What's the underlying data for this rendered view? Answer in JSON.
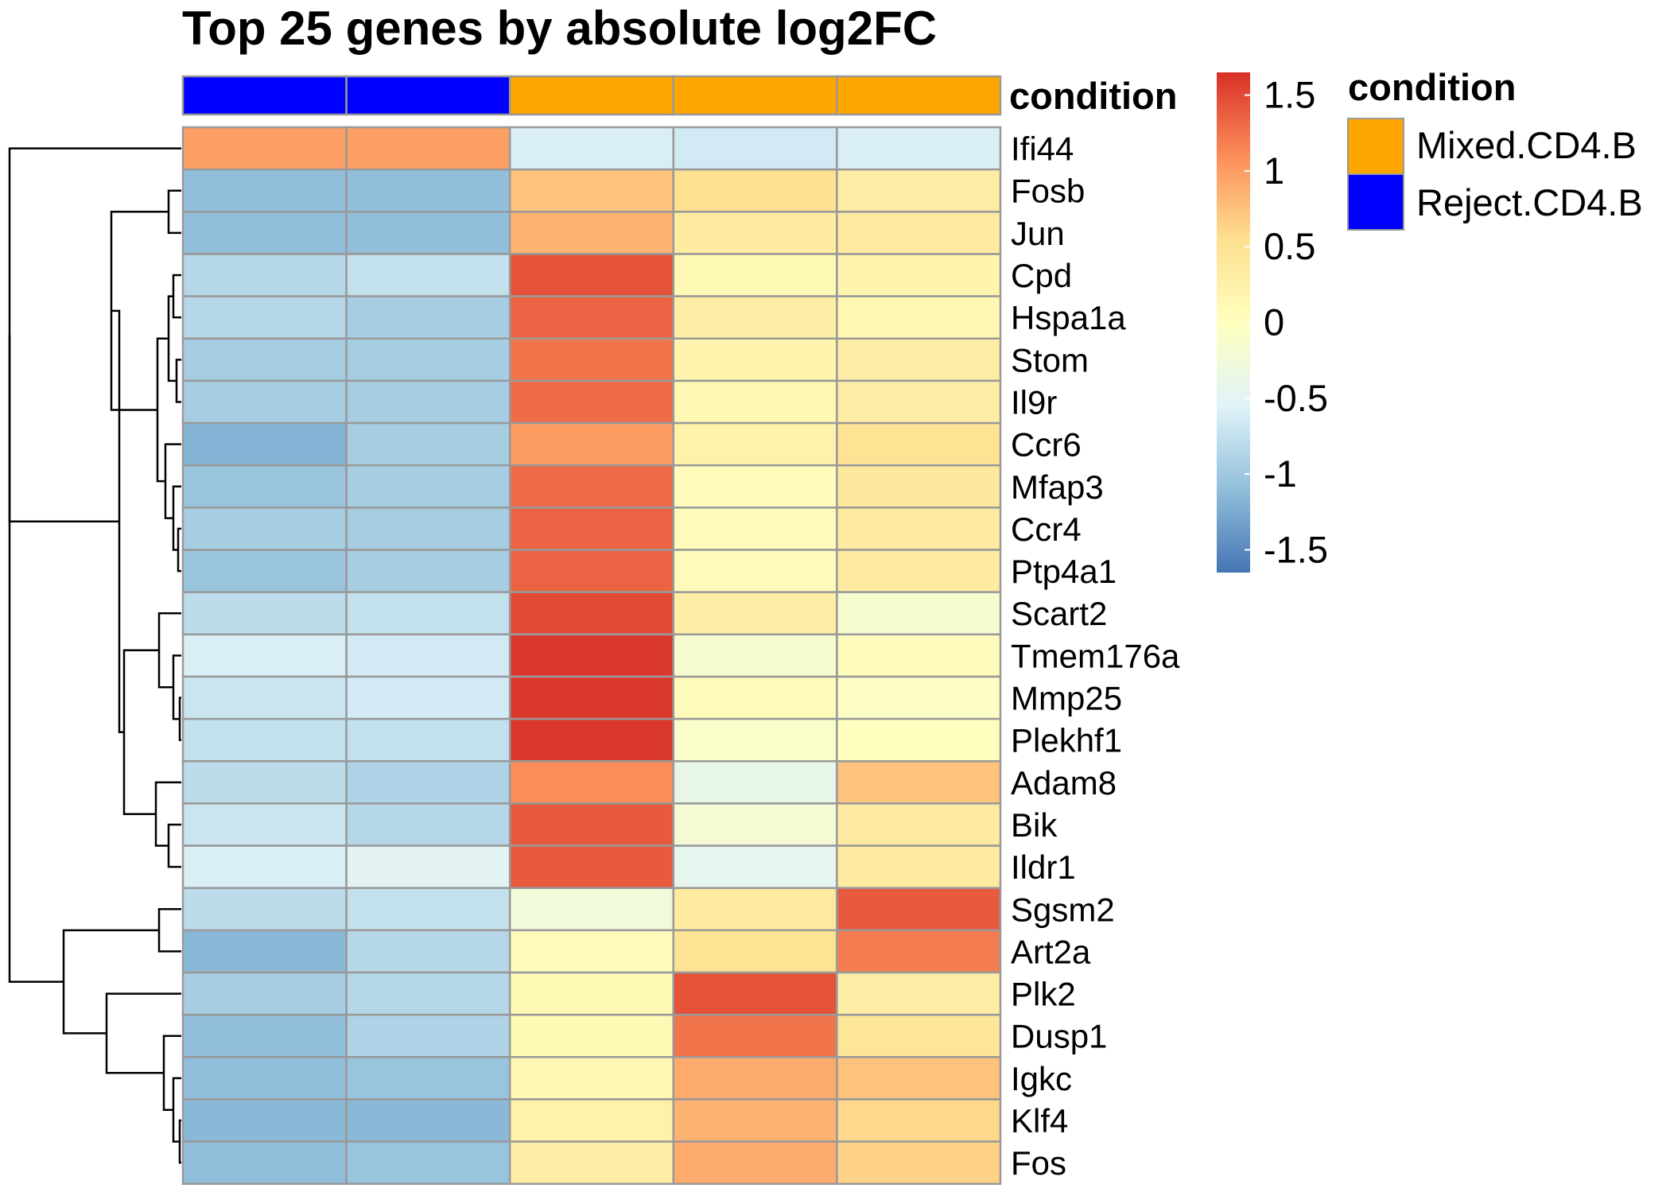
{
  "chart_data": {
    "type": "heatmap",
    "title": "Top 25 genes by absolute log2FC",
    "annotation": {
      "label": "condition",
      "columns": [
        "Reject.CD4.B",
        "Reject.CD4.B",
        "Mixed.CD4.B",
        "Mixed.CD4.B",
        "Mixed.CD4.B"
      ]
    },
    "genes": [
      "Ifi44",
      "Fosb",
      "Jun",
      "Cpd",
      "Hspa1a",
      "Stom",
      "Il9r",
      "Ccr6",
      "Mfap3",
      "Ccr4",
      "Ptp4a1",
      "Scart2",
      "Tmem176a",
      "Mmp25",
      "Plekhf1",
      "Adam8",
      "Bik",
      "Ildr1",
      "Sgsm2",
      "Art2a",
      "Plk2",
      "Dusp1",
      "Igkc",
      "Klf4",
      "Fos"
    ],
    "values": [
      [
        0.98,
        0.98,
        -0.6,
        -0.65,
        -0.6
      ],
      [
        -1.1,
        -1.1,
        0.75,
        0.55,
        0.3
      ],
      [
        -1.1,
        -1.1,
        0.85,
        0.35,
        0.35
      ],
      [
        -0.85,
        -0.75,
        1.45,
        0.1,
        0.2
      ],
      [
        -0.85,
        -0.95,
        1.35,
        0.3,
        0.15
      ],
      [
        -0.95,
        -0.95,
        1.25,
        0.2,
        0.3
      ],
      [
        -0.95,
        -0.95,
        1.3,
        0.15,
        0.3
      ],
      [
        -1.2,
        -0.95,
        1.0,
        0.25,
        0.5
      ],
      [
        -1.05,
        -0.95,
        1.3,
        0.05,
        0.4
      ],
      [
        -0.95,
        -0.95,
        1.35,
        0.05,
        0.35
      ],
      [
        -1.05,
        -0.95,
        1.35,
        0.05,
        0.35
      ],
      [
        -0.8,
        -0.75,
        1.5,
        0.3,
        -0.15
      ],
      [
        -0.6,
        -0.65,
        1.6,
        -0.15,
        0.05
      ],
      [
        -0.7,
        -0.65,
        1.6,
        0.05,
        -0.05
      ],
      [
        -0.75,
        -0.75,
        1.6,
        -0.1,
        0.0
      ],
      [
        -0.8,
        -0.9,
        1.1,
        -0.4,
        0.75
      ],
      [
        -0.7,
        -0.85,
        1.4,
        -0.2,
        0.35
      ],
      [
        -0.6,
        -0.5,
        1.4,
        -0.45,
        0.35
      ],
      [
        -0.8,
        -0.75,
        -0.25,
        0.35,
        1.4
      ],
      [
        -1.15,
        -0.85,
        0.05,
        0.5,
        1.2
      ],
      [
        -0.95,
        -0.85,
        0.1,
        1.45,
        0.3
      ],
      [
        -1.1,
        -0.9,
        0.1,
        1.25,
        0.45
      ],
      [
        -1.1,
        -1.05,
        0.15,
        0.9,
        0.75
      ],
      [
        -1.15,
        -1.15,
        0.25,
        0.85,
        0.6
      ],
      [
        -1.1,
        -1.05,
        0.3,
        0.9,
        0.65
      ]
    ],
    "colorbar": {
      "range": [
        -1.65,
        1.65
      ],
      "ticks": [
        "1.5",
        "1",
        "0.5",
        "0",
        "-0.5",
        "-1",
        "-1.5"
      ],
      "tick_values": [
        1.5,
        1,
        0.5,
        0,
        -0.5,
        -1,
        -1.5
      ]
    },
    "colorscale": [
      "#4575b4",
      "#91bfdb",
      "#e0f3f8",
      "#ffffbf",
      "#fee090",
      "#fc8d59",
      "#d73027"
    ],
    "legend": {
      "title": "condition",
      "items": [
        {
          "label": "Mixed.CD4.B",
          "color": "#ffa500"
        },
        {
          "label": "Reject.CD4.B",
          "color": "#0000ff"
        }
      ]
    },
    "dendrogram": {
      "side": "left"
    },
    "grid": true
  }
}
